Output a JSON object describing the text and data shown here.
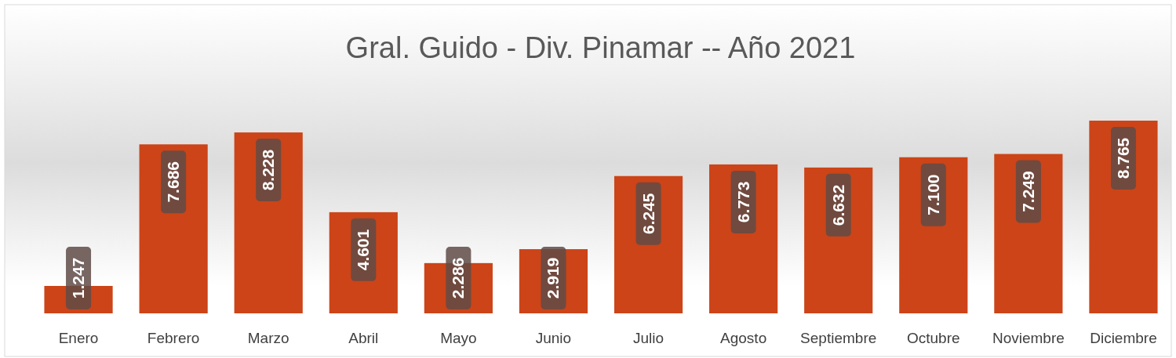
{
  "chart_data": {
    "type": "bar",
    "title": "Gral. Guido - Div. Pinamar -- Año 2021",
    "categories": [
      "Enero",
      "Febrero",
      "Marzo",
      "Abril",
      "Mayo",
      "Junio",
      "Julio",
      "Agosto",
      "Septiembre",
      "Octubre",
      "Noviembre",
      "Diciembre"
    ],
    "values": [
      1247,
      7686,
      8228,
      4601,
      2286,
      2919,
      6245,
      6773,
      6632,
      7100,
      7249,
      8765
    ],
    "value_labels": [
      "1.247",
      "7.686",
      "8.228",
      "4.601",
      "2.286",
      "2.919",
      "6.245",
      "6.773",
      "6.632",
      "7.100",
      "7.249",
      "8.765"
    ],
    "color": "#cc4418",
    "relative": false
  }
}
